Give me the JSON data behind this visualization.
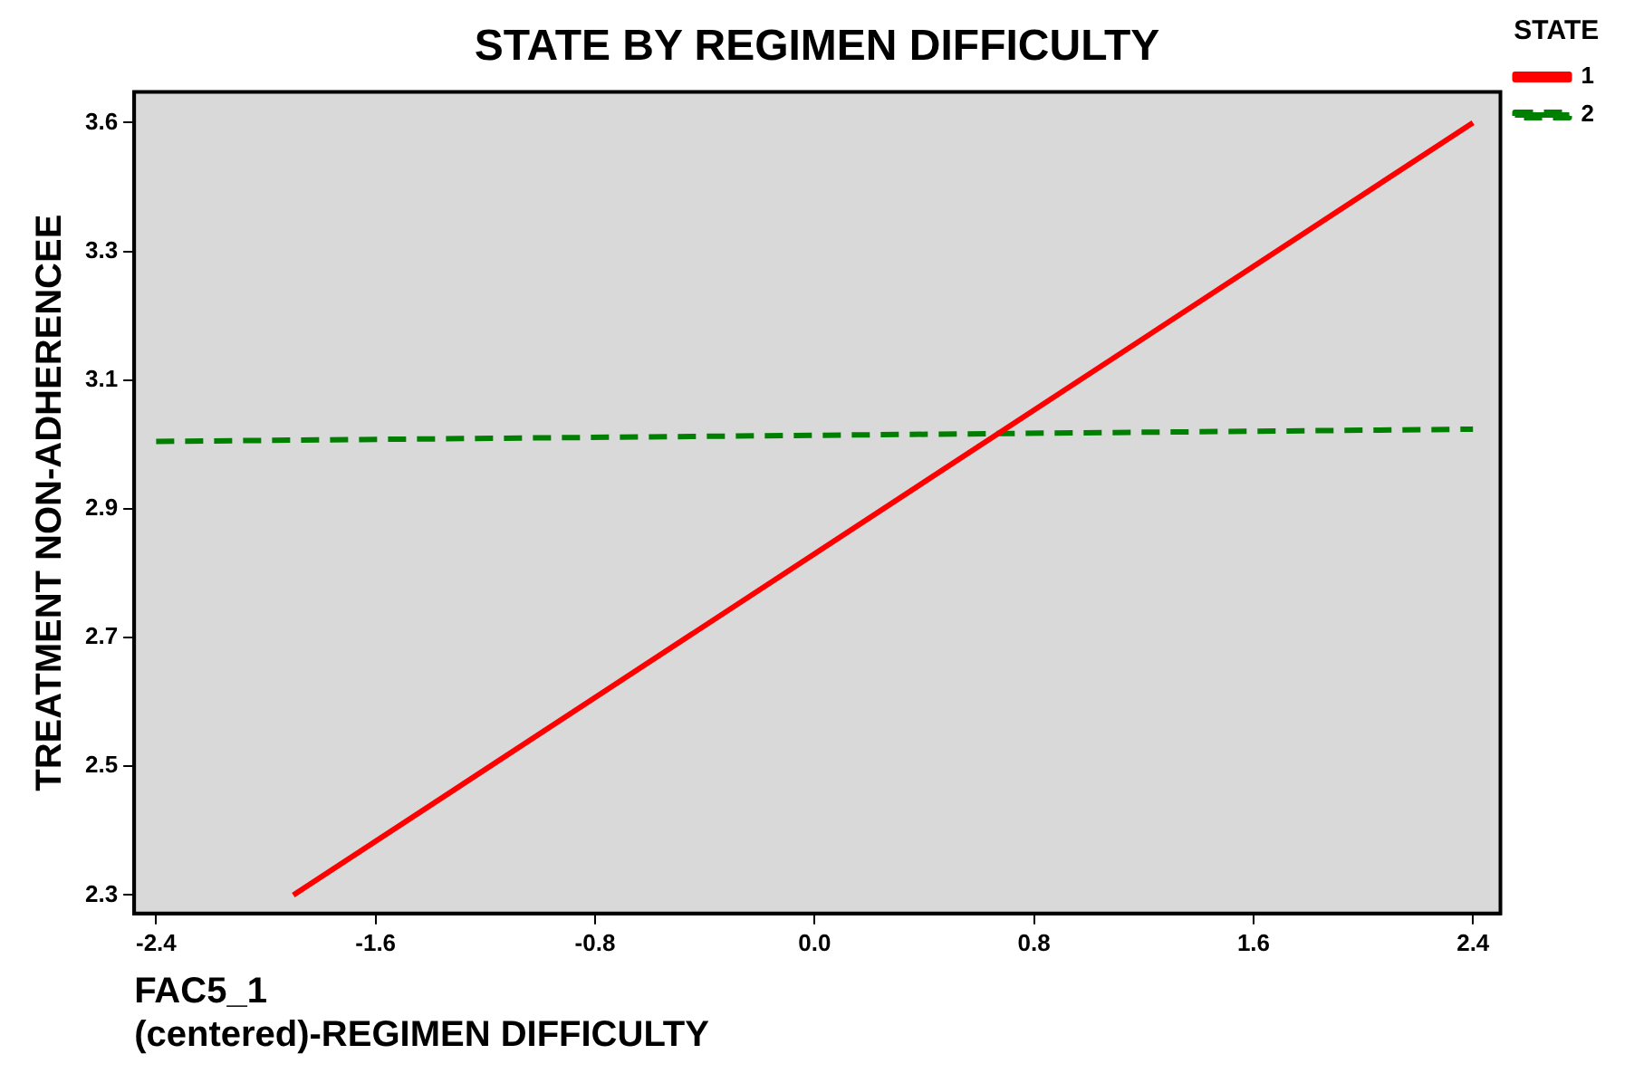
{
  "chart_data": {
    "type": "line",
    "title": "STATE BY REGIMEN DIFFICULTY",
    "xlabel": "FAC5_1\n(centered)-REGIMEN DIFFICULTY",
    "ylabel": "TREATMENT NON-ADHERENCEE",
    "legend_title": "STATE",
    "legend": "right",
    "grid": false,
    "marker": "none",
    "xlim": [
      -2.48,
      2.5
    ],
    "xticks": [
      -2.4,
      -1.6,
      -0.8,
      {
        "value": 0,
        "label": "0.0"
      },
      0.8,
      1.6,
      2.4
    ],
    "ylim": [
      2.27,
      3.61
    ],
    "yticks": [
      {
        "value": 2.3,
        "label": "2.3"
      },
      {
        "value": 2.51,
        "label": "2.5"
      },
      {
        "value": 2.72,
        "label": "2.7"
      },
      {
        "value": 2.93,
        "label": "2.9"
      },
      {
        "value": 3.14,
        "label": "3.1"
      },
      {
        "value": 3.35,
        "label": "3.3"
      },
      {
        "value": 3.56,
        "label": "3.6"
      }
    ],
    "series": [
      {
        "name": "1",
        "color": "#ff0000",
        "line_style": "solid",
        "x": [
          -1.9,
          2.4
        ],
        "values": [
          2.3,
          3.56
        ]
      },
      {
        "name": "2",
        "color": "#008000",
        "line_style": "dashed",
        "x": [
          -2.4,
          2.4
        ],
        "values": [
          3.04,
          3.06
        ]
      }
    ]
  }
}
